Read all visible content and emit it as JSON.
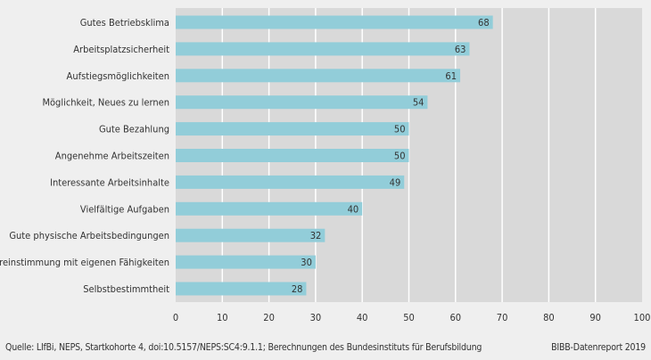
{
  "chart_data": {
    "type": "bar",
    "orientation": "horizontal",
    "categories": [
      "Gutes Betriebsklima",
      "Arbeitsplatzsicherheit",
      "Aufstiegsmöglichkeiten",
      "Möglichkeit, Neues zu lernen",
      "Gute Bezahlung",
      "Angenehme Arbeitszeiten",
      "Interessante Arbeitsinhalte",
      "Vielfältige Aufgaben",
      "Gute physische Arbeitsbedingungen",
      "Übereinstimmung mit eigenen Fähigkeiten",
      "Selbstbestimmtheit"
    ],
    "values": [
      68,
      63,
      61,
      54,
      50,
      50,
      49,
      40,
      32,
      30,
      28
    ],
    "xlim": [
      0,
      100
    ],
    "xticks": [
      "0",
      "10",
      "20",
      "30",
      "40",
      "50",
      "60",
      "70",
      "80",
      "90",
      "100"
    ],
    "grid": true,
    "data_labels": true,
    "colors": {
      "bar": "#92cdd9",
      "plot_bg": "#d9d9d9",
      "page_bg": "#efefef",
      "grid": "#ffffff"
    }
  },
  "footer": {
    "source": "Quelle: LIfBi, NEPS, Startkohorte 4, doi:10.5157/NEPS:SC4:9.1.1; Berechnungen des Bundesinstituts für Berufsbildung",
    "credit": "BIBB-Datenreport 2019"
  }
}
